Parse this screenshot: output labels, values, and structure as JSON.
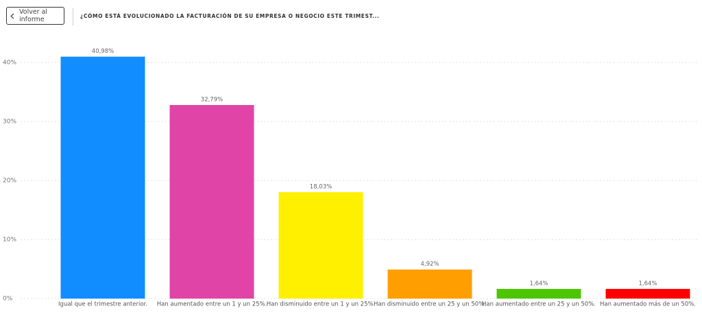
{
  "back_button": "Volver al informe",
  "chart_data": {
    "type": "bar",
    "title": "¿CÓMO ESTÁ EVOLUCIONADO LA FACTURACIÓN DE SU EMPRESA O NEGOCIO ESTE TRIMEST...",
    "categories": [
      "Igual que el trimestre anterior.",
      "Han aumentado entre un 1 y un 25%.",
      "Han disminuido entre un 1 y un 25%.",
      "Han disminuido entre un 25 y un 50%.",
      "Han aumentado entre un 25 y un 50%.",
      "Han aumentado más de un 50%."
    ],
    "values": [
      40.98,
      32.79,
      18.03,
      4.92,
      1.64,
      1.64
    ],
    "value_labels": [
      "40,98%",
      "32,79%",
      "18,03%",
      "4,92%",
      "1,64%",
      "1,64%"
    ],
    "colors": [
      "#118dff",
      "#e044a7",
      "#fff000",
      "#ff9e00",
      "#4cc600",
      "#ff0000"
    ],
    "ylim": [
      0,
      45
    ],
    "yticks": [
      {
        "value": 0,
        "label": "0%"
      },
      {
        "value": 10,
        "label": "10%"
      },
      {
        "value": 20,
        "label": "20%"
      },
      {
        "value": 30,
        "label": "30%"
      },
      {
        "value": 40,
        "label": "40%"
      }
    ],
    "grid": true
  }
}
